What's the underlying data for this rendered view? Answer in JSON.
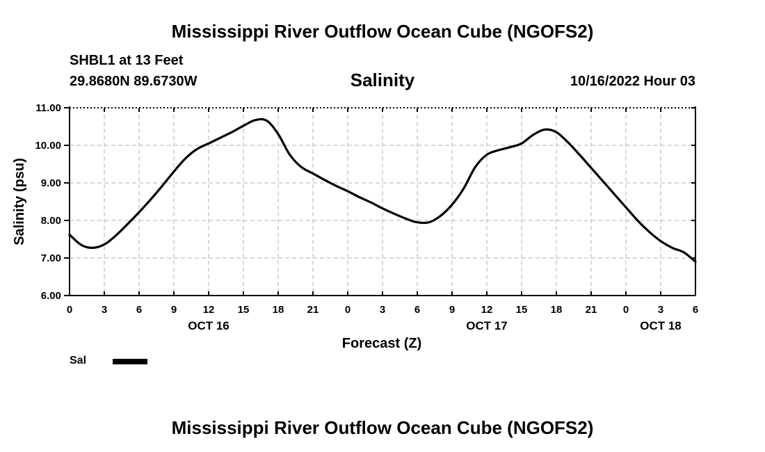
{
  "page": {
    "title_top": "Mississippi River Outflow Ocean Cube (NGOFS2)",
    "title_bottom": "Mississippi River Outflow Ocean Cube (NGOFS2)",
    "station": "SHBL1 at 13 Feet",
    "coords": "29.8680N  89.6730W",
    "subtitle": "Salinity",
    "timestamp": "10/16/2022 Hour 03"
  },
  "legend": {
    "label": "Sal"
  },
  "colors": {
    "line": "#000000",
    "grid": "#b0b0b0",
    "axis": "#000000"
  },
  "chart_data": {
    "type": "line",
    "title": "Salinity",
    "xlabel": "Forecast (Z)",
    "ylabel": "Salinity (psu)",
    "xlim": [
      0,
      54
    ],
    "ylim": [
      6.0,
      11.0
    ],
    "grid": true,
    "x_ticks": [
      0,
      3,
      6,
      9,
      12,
      15,
      18,
      21,
      24,
      27,
      30,
      33,
      36,
      39,
      42,
      45,
      48,
      51,
      54
    ],
    "x_tick_labels": [
      "0",
      "3",
      "6",
      "9",
      "12",
      "15",
      "18",
      "21",
      "0",
      "3",
      "6",
      "9",
      "12",
      "15",
      "18",
      "21",
      "0",
      "3",
      "6"
    ],
    "date_labels": [
      {
        "x": 12,
        "label": "OCT 16"
      },
      {
        "x": 36,
        "label": "OCT 17"
      },
      {
        "x": 51,
        "label": "OCT 18"
      }
    ],
    "y_ticks": [
      6,
      7,
      8,
      9,
      10,
      11
    ],
    "y_tick_labels": [
      "6.00",
      "7.00",
      "8.00",
      "9.00",
      "10.00",
      "11.00"
    ],
    "series": [
      {
        "name": "Sal",
        "x": [
          0,
          1,
          2,
          3,
          4,
          5,
          6,
          7,
          8,
          9,
          10,
          11,
          12,
          13,
          14,
          15,
          16,
          17,
          18,
          19,
          20,
          21,
          22,
          23,
          24,
          25,
          26,
          27,
          28,
          29,
          30,
          31,
          32,
          33,
          34,
          35,
          36,
          37,
          38,
          39,
          40,
          41,
          42,
          43,
          44,
          45,
          46,
          47,
          48,
          49,
          50,
          51,
          52,
          53,
          54
        ],
        "values": [
          7.62,
          7.35,
          7.27,
          7.36,
          7.6,
          7.9,
          8.22,
          8.56,
          8.92,
          9.3,
          9.65,
          9.9,
          10.05,
          10.2,
          10.35,
          10.52,
          10.67,
          10.66,
          10.3,
          9.75,
          9.42,
          9.25,
          9.08,
          8.92,
          8.78,
          8.62,
          8.48,
          8.32,
          8.18,
          8.05,
          7.95,
          7.95,
          8.12,
          8.42,
          8.85,
          9.42,
          9.75,
          9.87,
          9.95,
          10.05,
          10.28,
          10.42,
          10.35,
          10.08,
          9.75,
          9.4,
          9.05,
          8.7,
          8.35,
          8.0,
          7.7,
          7.45,
          7.27,
          7.15,
          6.9
        ]
      }
    ]
  },
  "chart_text": {
    "xlabel": "Forecast (Z)",
    "ylabel": "Salinity (psu)"
  }
}
